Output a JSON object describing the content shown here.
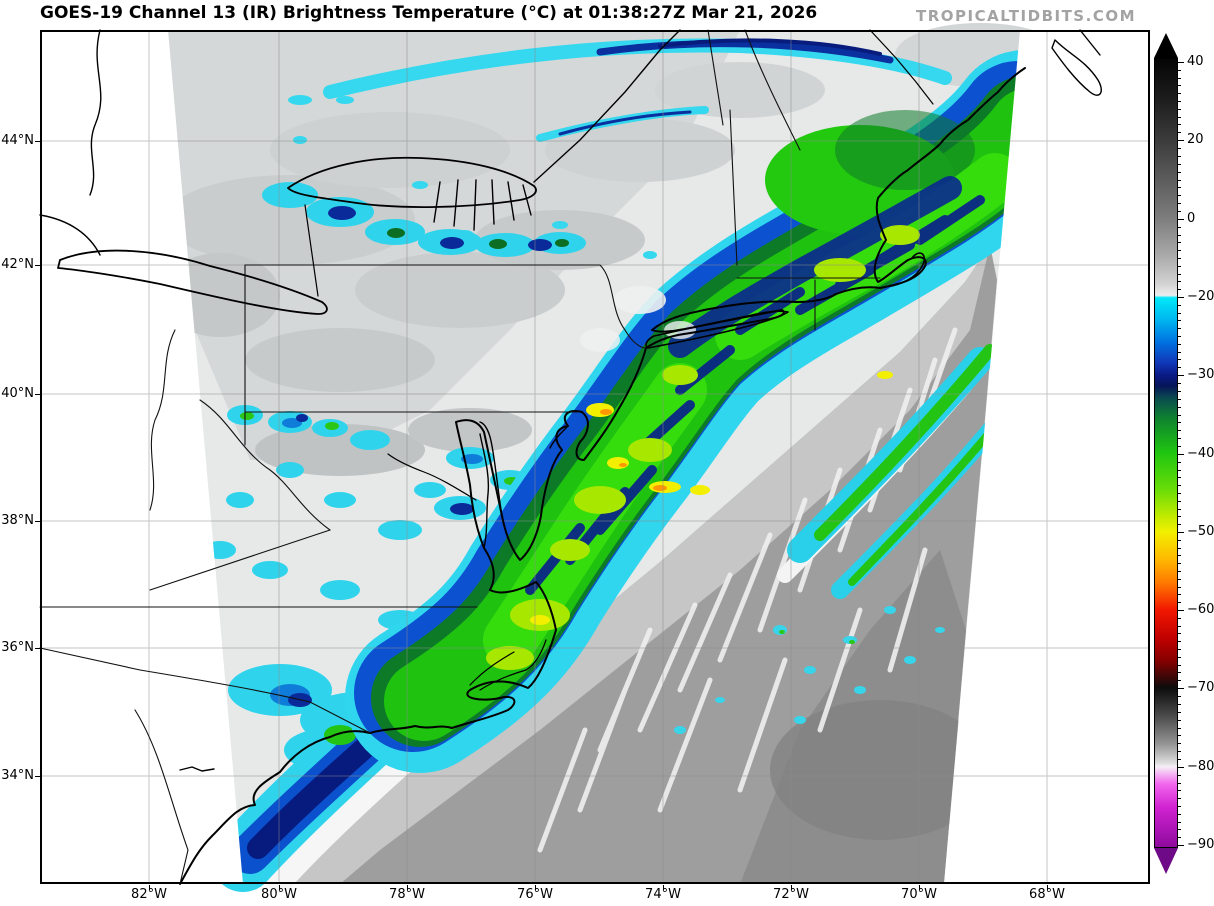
{
  "header": {
    "title": "GOES-19 Channel 13 (IR) Brightness Temperature (°C) at 01:38:27Z Mar 21, 2026",
    "watermark": "TROPICALTIDBITS.COM"
  },
  "axes": {
    "lat": [
      "44°N",
      "42°N",
      "40°N",
      "38°N",
      "36°N",
      "34°N"
    ],
    "lon": [
      "82°W",
      "80°W",
      "78°W",
      "76°W",
      "74°W",
      "72°W",
      "70°W",
      "68°W"
    ]
  },
  "colorbar": {
    "unit": "°C",
    "labels": [
      "40",
      "20",
      "0",
      "−20",
      "−30",
      "−40",
      "−50",
      "−60",
      "−70",
      "−80",
      "−90"
    ],
    "top_arrow_color": "#000000",
    "bottom_arrow_color": "#6e0a88",
    "stops": [
      {
        "p": 0.0,
        "c": "#050505"
      },
      {
        "p": 0.05,
        "c": "#1c1c1c"
      },
      {
        "p": 0.104,
        "c": "#3c3c3c"
      },
      {
        "p": 0.15,
        "c": "#5a5a5a"
      },
      {
        "p": 0.203,
        "c": "#7e7e7e"
      },
      {
        "p": 0.25,
        "c": "#aaaaaa"
      },
      {
        "p": 0.285,
        "c": "#d2d2d2"
      },
      {
        "p": 0.3,
        "c": "#ededed"
      },
      {
        "p": 0.303,
        "c": "#00e8f8"
      },
      {
        "p": 0.33,
        "c": "#00b8f0"
      },
      {
        "p": 0.36,
        "c": "#0070e0"
      },
      {
        "p": 0.385,
        "c": "#1038b8"
      },
      {
        "p": 0.401,
        "c": "#0a1a86"
      },
      {
        "p": 0.415,
        "c": "#061458"
      },
      {
        "p": 0.43,
        "c": "#0a4a50"
      },
      {
        "p": 0.455,
        "c": "#0e8030"
      },
      {
        "p": 0.5,
        "c": "#20c610"
      },
      {
        "p": 0.545,
        "c": "#66dc08"
      },
      {
        "p": 0.58,
        "c": "#c0ea00"
      },
      {
        "p": 0.6,
        "c": "#f2f000"
      },
      {
        "p": 0.635,
        "c": "#ffb800"
      },
      {
        "p": 0.665,
        "c": "#ff7800"
      },
      {
        "p": 0.699,
        "c": "#f21800"
      },
      {
        "p": 0.735,
        "c": "#c00000"
      },
      {
        "p": 0.765,
        "c": "#820000"
      },
      {
        "p": 0.798,
        "c": "#0c0c0c"
      },
      {
        "p": 0.835,
        "c": "#4e4e4e"
      },
      {
        "p": 0.87,
        "c": "#969696"
      },
      {
        "p": 0.893,
        "c": "#dcdcdc"
      },
      {
        "p": 0.898,
        "c": "#f6eef6"
      },
      {
        "p": 0.92,
        "c": "#f266ee"
      },
      {
        "p": 0.95,
        "c": "#d022d0"
      },
      {
        "p": 1.0,
        "c": "#8e0a9e"
      }
    ]
  },
  "imagery_palette": {
    "cold_cyan": "#2fd4ec",
    "cold_blue": "#0c52d0",
    "cold_navy": "#081e8c",
    "cold_dark_green": "#0d7a28",
    "cold_green": "#1fc20f",
    "cold_bright_green": "#35dd0d",
    "cold_yellow_green": "#a8e800",
    "cold_yellow": "#f2f000",
    "cold_orange": "#ff9800",
    "cloud_gray": "#d5d8d8",
    "ocean_gray": "#9e9e9e",
    "no_data": "#ffffff"
  }
}
